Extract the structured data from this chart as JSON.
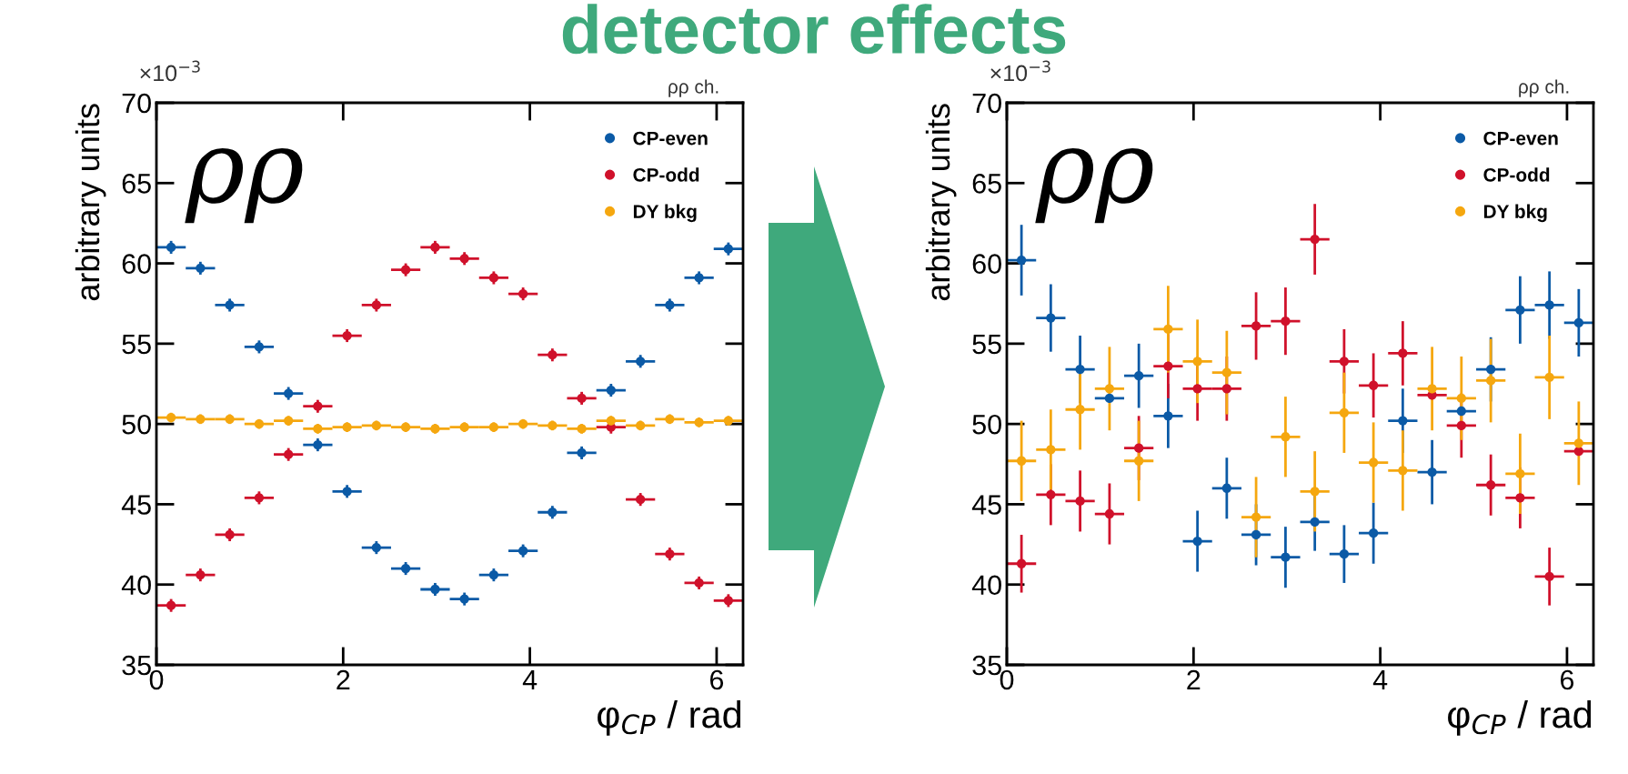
{
  "chart_data": [
    {
      "type": "scatter",
      "title": "detector effects",
      "xlabel": "φ$_{CP}$ / rad",
      "ylabel": "arbitrary units",
      "annotations": [
        "×10$^{−3}$",
        "ρρ ch.",
        "ρρ"
      ],
      "xlim": [
        0,
        6.2832
      ],
      "xticks": [
        0,
        2,
        4,
        6
      ],
      "ylim": [
        35,
        70
      ],
      "yticks": [
        35,
        40,
        45,
        50,
        55,
        60,
        65,
        70
      ],
      "legend": "top right",
      "marker": "circle",
      "grid": false,
      "x": [
        0.157,
        0.471,
        0.785,
        1.1,
        1.414,
        1.728,
        2.042,
        2.356,
        2.67,
        2.985,
        3.299,
        3.613,
        3.927,
        4.241,
        4.555,
        4.869,
        5.184,
        5.498,
        5.812,
        6.126
      ],
      "series": [
        {
          "name": "CP-even",
          "color": "#0b5aa6",
          "values": [
            61.0,
            59.7,
            57.4,
            54.8,
            51.9,
            48.7,
            45.8,
            42.3,
            41.0,
            39.7,
            39.1,
            40.6,
            42.1,
            44.5,
            48.2,
            52.1,
            53.9,
            57.4,
            59.1,
            60.9
          ],
          "errors": [
            0.4,
            0.4,
            0.4,
            0.4,
            0.4,
            0.4,
            0.4,
            0.4,
            0.4,
            0.4,
            0.4,
            0.4,
            0.4,
            0.4,
            0.4,
            0.4,
            0.4,
            0.4,
            0.4,
            0.4
          ],
          "xerrors": [
            0.157,
            0.157,
            0.157,
            0.157,
            0.157,
            0.157,
            0.157,
            0.157,
            0.157,
            0.157,
            0.157,
            0.157,
            0.157,
            0.157,
            0.157,
            0.157,
            0.157,
            0.157,
            0.157,
            0.157
          ]
        },
        {
          "name": "CP-odd",
          "color": "#d0112b",
          "values": [
            38.7,
            40.6,
            43.1,
            45.4,
            48.1,
            51.1,
            55.5,
            57.4,
            59.6,
            61.0,
            60.3,
            59.1,
            58.1,
            54.3,
            51.6,
            49.8,
            45.3,
            41.9,
            40.1,
            39.0
          ],
          "errors": [
            0.4,
            0.4,
            0.4,
            0.4,
            0.4,
            0.4,
            0.4,
            0.4,
            0.4,
            0.4,
            0.4,
            0.4,
            0.4,
            0.4,
            0.4,
            0.4,
            0.4,
            0.4,
            0.4,
            0.4
          ],
          "xerrors": [
            0.157,
            0.157,
            0.157,
            0.157,
            0.157,
            0.157,
            0.157,
            0.157,
            0.157,
            0.157,
            0.157,
            0.157,
            0.157,
            0.157,
            0.157,
            0.157,
            0.157,
            0.157,
            0.157,
            0.157
          ]
        },
        {
          "name": "DY bkg",
          "color": "#f5a70f",
          "values": [
            50.4,
            50.3,
            50.3,
            50.0,
            50.2,
            49.7,
            49.8,
            49.9,
            49.8,
            49.7,
            49.8,
            49.8,
            50.0,
            49.9,
            49.7,
            50.2,
            49.9,
            50.3,
            50.1,
            50.2
          ],
          "errors": [
            0.3,
            0.3,
            0.3,
            0.3,
            0.3,
            0.3,
            0.3,
            0.3,
            0.3,
            0.3,
            0.3,
            0.3,
            0.3,
            0.3,
            0.3,
            0.3,
            0.3,
            0.3,
            0.3,
            0.3
          ],
          "xerrors": [
            0.157,
            0.157,
            0.157,
            0.157,
            0.157,
            0.157,
            0.157,
            0.157,
            0.157,
            0.157,
            0.157,
            0.157,
            0.157,
            0.157,
            0.157,
            0.157,
            0.157,
            0.157,
            0.157,
            0.157
          ]
        }
      ]
    },
    {
      "type": "scatter",
      "xlabel": "φ$_{CP}$ / rad",
      "ylabel": "arbitrary units",
      "annotations": [
        "×10$^{−3}$",
        "ρρ ch.",
        "ρρ"
      ],
      "xlim": [
        0,
        6.2832
      ],
      "xticks": [
        0,
        2,
        4,
        6
      ],
      "ylim": [
        35,
        70
      ],
      "yticks": [
        35,
        40,
        45,
        50,
        55,
        60,
        65,
        70
      ],
      "legend": "top right",
      "marker": "circle",
      "grid": false,
      "x": [
        0.157,
        0.471,
        0.785,
        1.1,
        1.414,
        1.728,
        2.042,
        2.356,
        2.67,
        2.985,
        3.299,
        3.613,
        3.927,
        4.241,
        4.555,
        4.869,
        5.184,
        5.498,
        5.812,
        6.126
      ],
      "series": [
        {
          "name": "CP-even",
          "color": "#0b5aa6",
          "values": [
            60.2,
            56.6,
            53.4,
            51.6,
            53.0,
            50.5,
            42.7,
            46.0,
            43.1,
            41.7,
            43.9,
            41.9,
            43.2,
            50.2,
            47.0,
            50.8,
            53.4,
            57.1,
            57.4,
            56.3
          ],
          "errors": [
            2.2,
            2.1,
            2.1,
            null,
            2.0,
            2.0,
            1.9,
            1.9,
            1.9,
            1.9,
            1.8,
            1.8,
            1.9,
            2.0,
            2.0,
            null,
            2.0,
            2.1,
            2.1,
            2.1
          ],
          "xerrors": [
            0.157,
            0.157,
            0.157,
            0.157,
            0.157,
            0.157,
            0.157,
            0.157,
            0.157,
            0.157,
            0.157,
            0.157,
            0.157,
            0.157,
            0.157,
            0.157,
            0.157,
            0.157,
            0.157,
            0.157
          ]
        },
        {
          "name": "CP-odd",
          "color": "#d0112b",
          "values": [
            41.3,
            45.6,
            45.2,
            44.4,
            48.5,
            53.6,
            52.2,
            52.2,
            56.1,
            56.4,
            61.5,
            53.9,
            52.4,
            54.4,
            51.8,
            49.9,
            46.2,
            45.4,
            40.5,
            48.3
          ],
          "errors": [
            1.8,
            1.9,
            1.9,
            1.9,
            2.0,
            2.0,
            2.0,
            2.0,
            2.1,
            2.1,
            2.2,
            2.0,
            2.0,
            2.0,
            null,
            2.0,
            1.9,
            1.9,
            1.8,
            null
          ],
          "xerrors": [
            0.157,
            0.157,
            0.157,
            0.157,
            0.157,
            0.157,
            0.157,
            0.157,
            0.157,
            0.157,
            0.157,
            0.157,
            0.157,
            0.157,
            0.157,
            0.157,
            0.157,
            0.157,
            0.157,
            0.157
          ]
        },
        {
          "name": "DY bkg",
          "color": "#f5a70f",
          "values": [
            47.7,
            48.4,
            50.9,
            52.2,
            47.7,
            55.9,
            53.9,
            53.2,
            44.2,
            49.2,
            45.8,
            50.7,
            47.6,
            47.1,
            52.2,
            51.6,
            52.7,
            46.9,
            52.9,
            48.8
          ],
          "errors": [
            2.5,
            2.5,
            2.5,
            2.6,
            2.5,
            2.7,
            2.6,
            2.6,
            2.5,
            2.5,
            2.5,
            2.5,
            2.5,
            2.5,
            2.6,
            2.6,
            2.6,
            2.5,
            2.6,
            2.6
          ],
          "xerrors": [
            0.157,
            0.157,
            0.157,
            0.157,
            0.157,
            0.157,
            0.157,
            0.157,
            0.157,
            0.157,
            0.157,
            0.157,
            0.157,
            0.157,
            0.157,
            0.157,
            0.157,
            0.157,
            0.157,
            0.157
          ]
        }
      ]
    }
  ]
}
